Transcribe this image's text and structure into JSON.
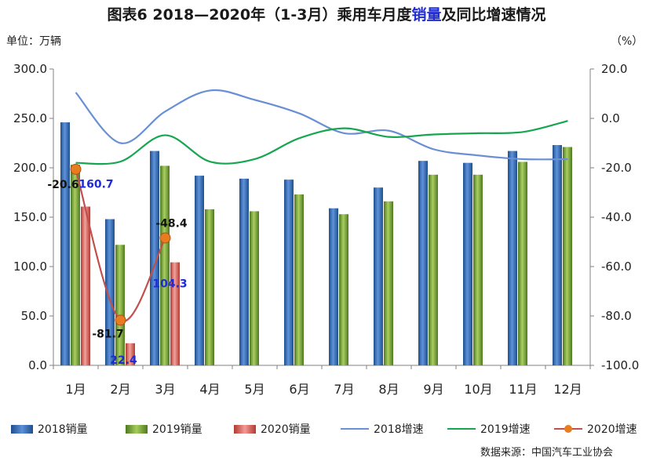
{
  "title": {
    "prefix": "图表6    2018—2020年（1-3月）乘用车月度",
    "highlight": "销量",
    "suffix": "及同比增速情况"
  },
  "unit_left": "单位：万辆",
  "unit_right": "（%）",
  "source": "数据来源：中国汽车工业协会",
  "colors": {
    "bar2018": "#3569b3",
    "bar2019": "#7ea43d",
    "bar2020": "#d9645c",
    "line2018": "#6a8fd4",
    "line2019": "#17a650",
    "line2020": "#c0504d",
    "marker2020": "#e87c1e"
  },
  "chart_data": {
    "type": "bar",
    "categories": [
      "1月",
      "2月",
      "3月",
      "4月",
      "5月",
      "6月",
      "7月",
      "8月",
      "9月",
      "10月",
      "11月",
      "12月"
    ],
    "y_left": {
      "ylim": [
        0,
        300
      ],
      "ticks": [
        "0.0",
        "50.0",
        "100.0",
        "150.0",
        "200.0",
        "250.0",
        "300.0"
      ]
    },
    "y_right": {
      "ylim": [
        -100,
        20
      ],
      "ticks": [
        "-100.0",
        "-80.0",
        "-60.0",
        "-40.0",
        "-20.0",
        "0.0",
        "20.0"
      ]
    },
    "bar_series": [
      {
        "name": "2018销量",
        "values": [
          246,
          148,
          217,
          192,
          189,
          188,
          159,
          180,
          207,
          205,
          217,
          223
        ]
      },
      {
        "name": "2019销量",
        "values": [
          203,
          122,
          202,
          158,
          156,
          173,
          153,
          166,
          193,
          193,
          206,
          221
        ]
      },
      {
        "name": "2020销量",
        "values": [
          160.7,
          22.4,
          104.3
        ],
        "labels": [
          "160.7",
          "22.4",
          "104.3"
        ]
      }
    ],
    "line_series": [
      {
        "name": "2018增速",
        "axis": "right",
        "values": [
          10.5,
          -10,
          2.8,
          11.3,
          7.5,
          2,
          -6,
          -5,
          -12.5,
          -15,
          -16.5,
          -16.5
        ]
      },
      {
        "name": "2019增速",
        "axis": "right",
        "values": [
          -18,
          -17.5,
          -6.8,
          -17.5,
          -16.5,
          -8,
          -4,
          -7.5,
          -6.5,
          -6,
          -5.5,
          -1
        ]
      },
      {
        "name": "2020增速",
        "axis": "right",
        "values": [
          -20.6,
          -81.7,
          -48.4
        ],
        "labels": [
          "-20.6",
          "-81.7",
          "-48.4"
        ]
      }
    ]
  },
  "legend": [
    "2018销量",
    "2019销量",
    "2020销量",
    "2018增速",
    "2019增速",
    "2020增速"
  ]
}
